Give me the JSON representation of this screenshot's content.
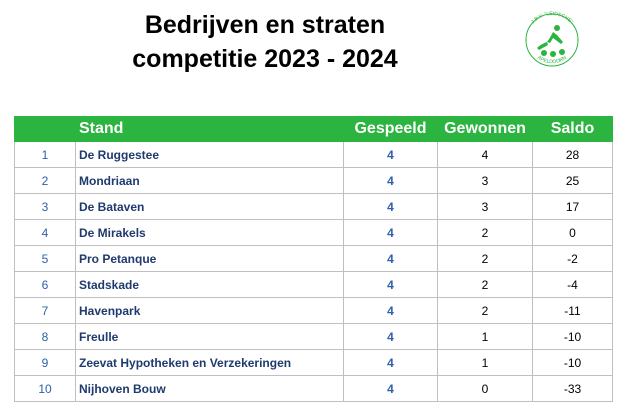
{
  "title": {
    "line1": "Bedrijven en straten",
    "line2": "competitie 2023 - 2024"
  },
  "logo": {
    "top_text": "J.B.V. \"LEIDSCHE\"",
    "bottom_text": "APELDOORN",
    "icon": "jeu-de-boules-club-logo",
    "color": "#2bb43f"
  },
  "table": {
    "header_color": "#2bb43f",
    "headers": {
      "rank": "",
      "team": "Stand",
      "played": "Gespeeld",
      "won": "Gewonnen",
      "saldo": "Saldo"
    },
    "rows": [
      {
        "rank": "1",
        "team": "De Ruggestee",
        "played": "4",
        "won": "4",
        "saldo": "28"
      },
      {
        "rank": "2",
        "team": "Mondriaan",
        "played": "4",
        "won": "3",
        "saldo": "25"
      },
      {
        "rank": "3",
        "team": "De Bataven",
        "played": "4",
        "won": "3",
        "saldo": "17"
      },
      {
        "rank": "4",
        "team": "De Mirakels",
        "played": "4",
        "won": "2",
        "saldo": "0"
      },
      {
        "rank": "5",
        "team": "Pro Petanque",
        "played": "4",
        "won": "2",
        "saldo": "-2"
      },
      {
        "rank": "6",
        "team": "Stadskade",
        "played": "4",
        "won": "2",
        "saldo": "-4"
      },
      {
        "rank": "7",
        "team": "Havenpark",
        "played": "4",
        "won": "2",
        "saldo": "-11"
      },
      {
        "rank": "8",
        "team": "Freulle",
        "played": "4",
        "won": "1",
        "saldo": "-10"
      },
      {
        "rank": "9",
        "team": "Zeevat Hypotheken en Verzekeringen",
        "played": "4",
        "won": "1",
        "saldo": "-10"
      },
      {
        "rank": "10",
        "team": "Nijhoven Bouw",
        "played": "4",
        "won": "0",
        "saldo": "-33"
      }
    ]
  }
}
